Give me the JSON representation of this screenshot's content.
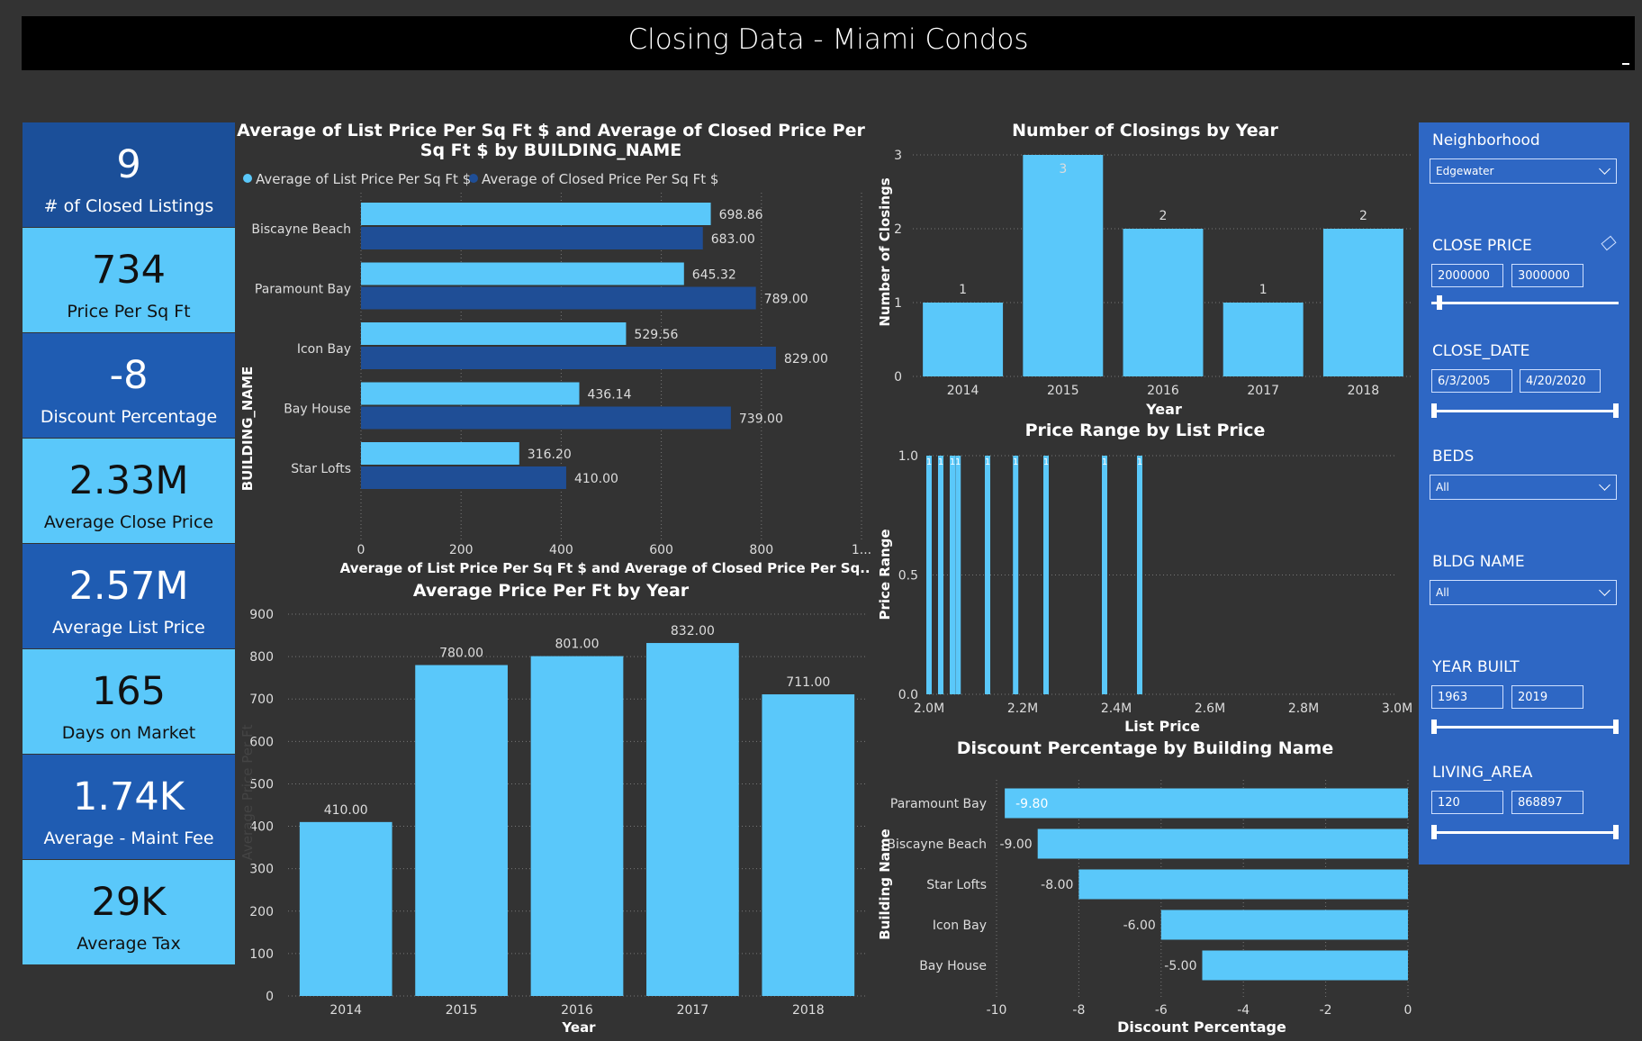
{
  "header": {
    "title": "Closing Data - Miami Condos"
  },
  "kpis": [
    {
      "value": "9",
      "label": "# of Closed Listings"
    },
    {
      "value": "734",
      "label": "Price Per Sq Ft"
    },
    {
      "value": "-8",
      "label": "Discount Percentage"
    },
    {
      "value": "2.33M",
      "label": "Average Close Price"
    },
    {
      "value": "2.57M",
      "label": "Average List Price"
    },
    {
      "value": "165",
      "label": "Days on Market"
    },
    {
      "value": "1.74K",
      "label": "Average - Maint Fee"
    },
    {
      "value": "29K",
      "label": "Average Tax"
    }
  ],
  "slicers": {
    "neighborhood": {
      "title": "Neighborhood",
      "value": "Edgewater"
    },
    "close_price": {
      "title": "CLOSE PRICE",
      "min": "2000000",
      "max": "3000000",
      "slider_from": 0.03,
      "slider_to": 1.0
    },
    "close_date": {
      "title": "CLOSE_DATE",
      "min": "6/3/2005",
      "max": "4/20/2020",
      "slider_from": 0.0,
      "slider_to": 1.0
    },
    "beds": {
      "title": "BEDS",
      "value": "All"
    },
    "bldg_name": {
      "title": "BLDG NAME",
      "value": "All"
    },
    "year_built": {
      "title": "YEAR BUILT",
      "min": "1963",
      "max": "2019",
      "slider_from": 0.0,
      "slider_to": 1.0
    },
    "living_area": {
      "title": "LIVING_AREA",
      "min": "120",
      "max": "868897",
      "slider_from": 0.0,
      "slider_to": 1.0
    }
  },
  "colors": {
    "light": "#5ac8fa",
    "dark": "#1f4e96",
    "panel": "#2e67c4"
  },
  "chart_data": [
    {
      "id": "ppsf",
      "type": "bar",
      "orientation": "horizontal",
      "title": "Average of List Price Per Sq Ft $ and Average of Closed Price Per Sq Ft $ by BUILDING_NAME",
      "xlabel": "Average of List Price Per Sq Ft $ and Average of Closed Price Per Sq...",
      "ylabel": "BUILDING_NAME",
      "categories": [
        "Biscayne Beach",
        "Paramount Bay",
        "Icon Bay",
        "Bay House",
        "Star Lofts"
      ],
      "series": [
        {
          "name": "Average of List Price Per Sq Ft $",
          "values": [
            698.86,
            645.32,
            529.56,
            436.14,
            316.2
          ],
          "labels": [
            "698.86",
            "645.32",
            "529.56",
            "436.14",
            "316.20"
          ]
        },
        {
          "name": "Average of Closed Price Per Sq Ft $",
          "values": [
            683.0,
            789.0,
            829.0,
            739.0,
            410.0
          ],
          "labels": [
            "683.00",
            "789.00",
            "829.00",
            "739.00",
            "410.00"
          ]
        }
      ],
      "xticks": [
        "0",
        "200",
        "400",
        "600",
        "800",
        "1..."
      ],
      "xlim": [
        0,
        1000
      ],
      "legend": "top-left",
      "grid": true
    },
    {
      "id": "closings",
      "type": "bar",
      "title": "Number of Closings by Year",
      "xlabel": "Year",
      "ylabel": "Number of Closings",
      "categories": [
        "2014",
        "2015",
        "2016",
        "2017",
        "2018"
      ],
      "values": [
        1,
        3,
        2,
        1,
        2
      ],
      "labels": [
        "1",
        "3",
        "2",
        "1",
        "2"
      ],
      "yticks": [
        "0",
        "1",
        "2",
        "3"
      ],
      "ylim": [
        0,
        3
      ],
      "grid": true
    },
    {
      "id": "price_range",
      "type": "bar",
      "title": "Price Range by List Price",
      "xlabel": "List Price",
      "ylabel": "Price Range",
      "x": [
        2000000,
        2025000,
        2050000,
        2062000,
        2125000,
        2185000,
        2250000,
        2375000,
        2450000
      ],
      "values": [
        1,
        1,
        1,
        1,
        1,
        1,
        1,
        1,
        1
      ],
      "labels": [
        "1",
        "1",
        "1",
        "1",
        "1",
        "1",
        "1",
        "1",
        "1"
      ],
      "xticks": [
        "2.0M",
        "2.2M",
        "2.4M",
        "2.6M",
        "2.8M",
        "3.0M"
      ],
      "yticks": [
        "0.0",
        "0.5",
        "1.0"
      ],
      "xlim": [
        2000000,
        3000000
      ],
      "ylim": [
        0,
        1
      ],
      "grid": true
    },
    {
      "id": "avg_ppf_year",
      "type": "bar",
      "title": "Average Price Per Ft by Year",
      "xlabel": "Year",
      "ylabel": "Average Price Per Ft",
      "categories": [
        "2014",
        "2015",
        "2016",
        "2017",
        "2018"
      ],
      "values": [
        410.0,
        780.0,
        801.0,
        832.0,
        711.0
      ],
      "labels": [
        "410.00",
        "780.00",
        "801.00",
        "832.00",
        "711.00"
      ],
      "yticks": [
        "0",
        "100",
        "200",
        "300",
        "400",
        "500",
        "600",
        "700",
        "800",
        "900"
      ],
      "ylim": [
        0,
        900
      ],
      "grid": true
    },
    {
      "id": "discount",
      "type": "bar",
      "orientation": "horizontal",
      "title": "Discount Percentage by Building Name",
      "xlabel": "Discount Percentage",
      "ylabel": "Building Name",
      "categories": [
        "Paramount Bay",
        "Biscayne Beach",
        "Star Lofts",
        "Icon Bay",
        "Bay House"
      ],
      "values": [
        -9.8,
        -9.0,
        -8.0,
        -6.0,
        -5.0
      ],
      "labels": [
        "-9.80",
        "-9.00",
        "-8.00",
        "-6.00",
        "-5.00"
      ],
      "xticks": [
        "-10",
        "-8",
        "-6",
        "-4",
        "-2",
        "0"
      ],
      "xlim": [
        -10,
        0
      ],
      "grid": true
    }
  ]
}
